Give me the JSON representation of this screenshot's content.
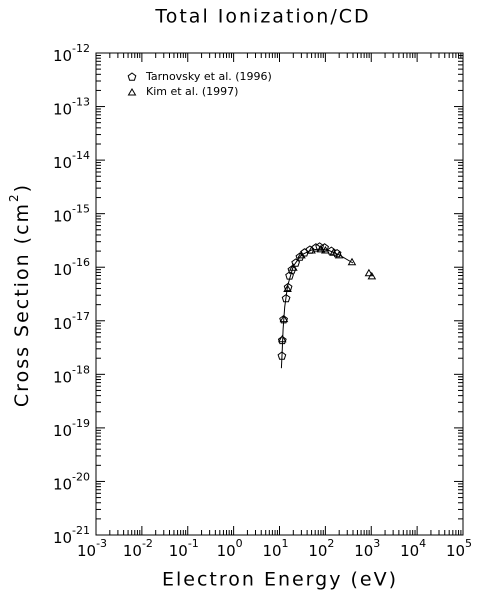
{
  "chart_data": {
    "type": "scatter",
    "title": "Total Ionization/CD",
    "xlabel": "Electron Energy (eV)",
    "ylabel": {
      "text": "Cross Section (cm",
      "superscript": "2",
      "close": ")"
    },
    "xscale": "log",
    "yscale": "log",
    "xlim": [
      0.001,
      100000
    ],
    "ylim": [
      1e-21,
      1e-12
    ],
    "xticks": [
      {
        "value": 0.001,
        "label": "10",
        "exponent": "-3"
      },
      {
        "value": 0.01,
        "label": "10",
        "exponent": "-2"
      },
      {
        "value": 0.1,
        "label": "10",
        "exponent": "-1"
      },
      {
        "value": 1,
        "label": "10",
        "exponent": "0"
      },
      {
        "value": 10,
        "label": "10",
        "exponent": "1"
      },
      {
        "value": 100,
        "label": "10",
        "exponent": "2"
      },
      {
        "value": 1000,
        "label": "10",
        "exponent": "3"
      },
      {
        "value": 10000,
        "label": "10",
        "exponent": "4"
      },
      {
        "value": 100000,
        "label": "10",
        "exponent": "5"
      }
    ],
    "yticks": [
      {
        "value": 1e-21,
        "label": "10",
        "exponent": "-21"
      },
      {
        "value": 1e-20,
        "label": "10",
        "exponent": "-20"
      },
      {
        "value": 1e-19,
        "label": "10",
        "exponent": "-19"
      },
      {
        "value": 1e-18,
        "label": "10",
        "exponent": "-18"
      },
      {
        "value": 1e-17,
        "label": "10",
        "exponent": "-17"
      },
      {
        "value": 1e-16,
        "label": "10",
        "exponent": "-16"
      },
      {
        "value": 1e-15,
        "label": "10",
        "exponent": "-15"
      },
      {
        "value": 1e-14,
        "label": "10",
        "exponent": "-14"
      },
      {
        "value": 1e-13,
        "label": "10",
        "exponent": "-13"
      },
      {
        "value": 1e-12,
        "label": "10",
        "exponent": "-12"
      }
    ],
    "legend": "upper left",
    "color": "#000000",
    "series": [
      {
        "name": "Tarnovsky et al. (1996)",
        "marker": "pentagon",
        "x": [
          11.3,
          11.5,
          12.3,
          13.9,
          15.4,
          16.6,
          18.6,
          22.5,
          27.9,
          35,
          46,
          62,
          75,
          96,
          135,
          180
        ],
        "values": [
          2.2e-18,
          4.3e-18,
          1.05e-17,
          2.6e-17,
          4.2e-17,
          6.9e-17,
          8.9e-17,
          1.2e-16,
          1.55e-16,
          1.86e-16,
          2.1e-16,
          2.3e-16,
          2.4e-16,
          2.3e-16,
          2e-16,
          1.8e-16
        ]
      },
      {
        "name": "Kim et al. (1997)",
        "marker": "triangle",
        "x": [
          11.5,
          12.5,
          15,
          20,
          30,
          50,
          80,
          100,
          150,
          200,
          380,
          890,
          1030
        ],
        "values": [
          4.6e-18,
          1.1e-17,
          4e-17,
          1e-16,
          1.7e-16,
          2.1e-16,
          2.2e-16,
          2.1e-16,
          1.9e-16,
          1.7e-16,
          1.26e-16,
          7.9e-17,
          6.9e-17
        ]
      }
    ],
    "curve": {
      "x": [
        11,
        11.5,
        12,
        13,
        15,
        20,
        30,
        50,
        80,
        120,
        200,
        400
      ],
      "values": [
        1.3e-18,
        3e-18,
        7e-18,
        1.8e-17,
        4.5e-17,
        1.05e-16,
        1.7e-16,
        2.1e-16,
        2.2e-16,
        2.05e-16,
        1.7e-16,
        1.2e-16
      ]
    }
  }
}
